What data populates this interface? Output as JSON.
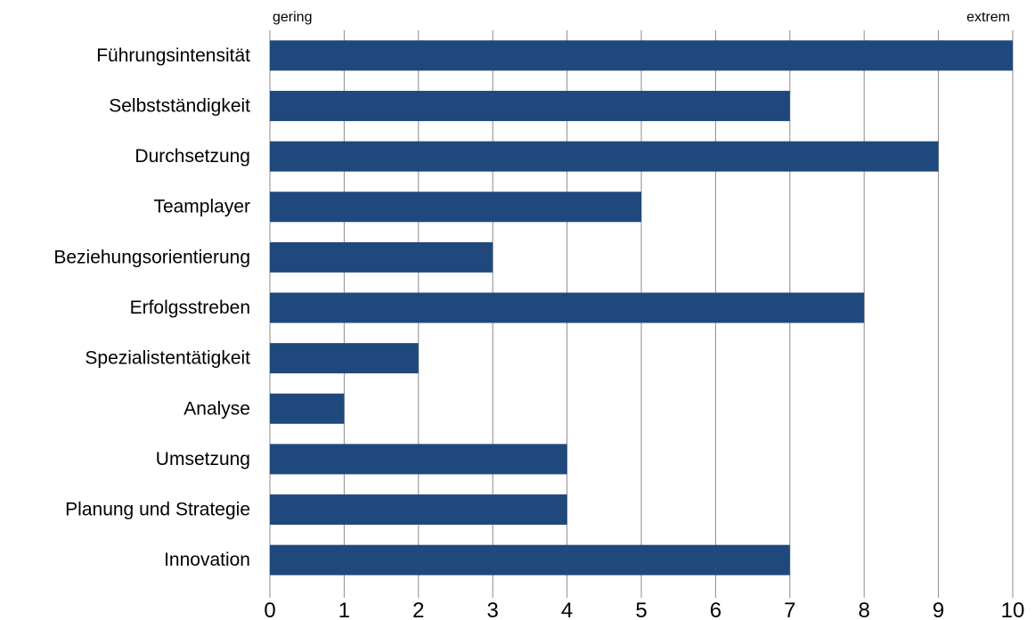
{
  "chart_data": {
    "type": "bar",
    "orientation": "horizontal",
    "categories": [
      "Führungsintensität",
      "Selbstständigkeit",
      "Durchsetzung",
      "Teamplayer",
      "Beziehungsorientierung",
      "Erfolgsstreben",
      "Spezialistentätigkeit",
      "Analyse",
      "Umsetzung",
      "Planung und Strategie",
      "Innovation"
    ],
    "values": [
      10,
      7,
      9,
      5,
      3,
      8,
      2,
      1,
      4,
      4,
      7
    ],
    "xlim": [
      0,
      10
    ],
    "xticks": [
      "0",
      "1",
      "2",
      "3",
      "4",
      "5",
      "6",
      "7",
      "8",
      "9",
      "10"
    ],
    "scale_low_label": "gering",
    "scale_high_label": "extrem",
    "grid": true,
    "bar_color": "#1f497d",
    "grid_color": "#8c8c8c"
  }
}
